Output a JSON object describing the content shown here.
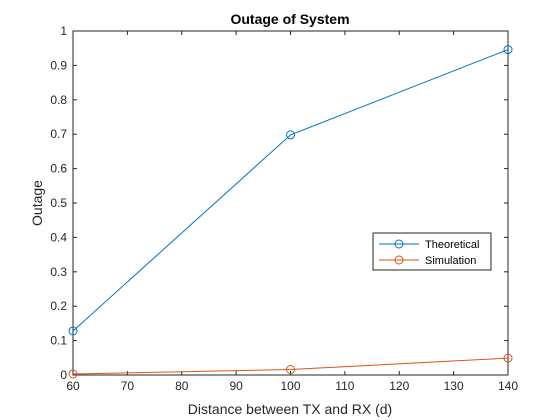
{
  "chart_data": {
    "type": "line",
    "title": "Outage of System",
    "xlabel": "Distance between TX and RX (d)",
    "ylabel": "Outage",
    "xlim": [
      60,
      140
    ],
    "ylim": [
      0,
      1
    ],
    "xticks": [
      "60",
      "70",
      "80",
      "90",
      "100",
      "110",
      "120",
      "130",
      "140"
    ],
    "yticks": [
      "0",
      "0.1",
      "0.2",
      "0.3",
      "0.4",
      "0.5",
      "0.6",
      "0.7",
      "0.8",
      "0.9",
      "1"
    ],
    "grid": false,
    "legend_position": "right",
    "series": [
      {
        "name": "Theoretical",
        "color": "#0072bd",
        "marker": "circle",
        "x": [
          60,
          100,
          140
        ],
        "y": [
          0.128,
          0.698,
          0.946
        ]
      },
      {
        "name": "Simulation",
        "color": "#d95319",
        "marker": "circle",
        "x": [
          60,
          100,
          140
        ],
        "y": [
          0.003,
          0.016,
          0.049
        ]
      }
    ]
  }
}
